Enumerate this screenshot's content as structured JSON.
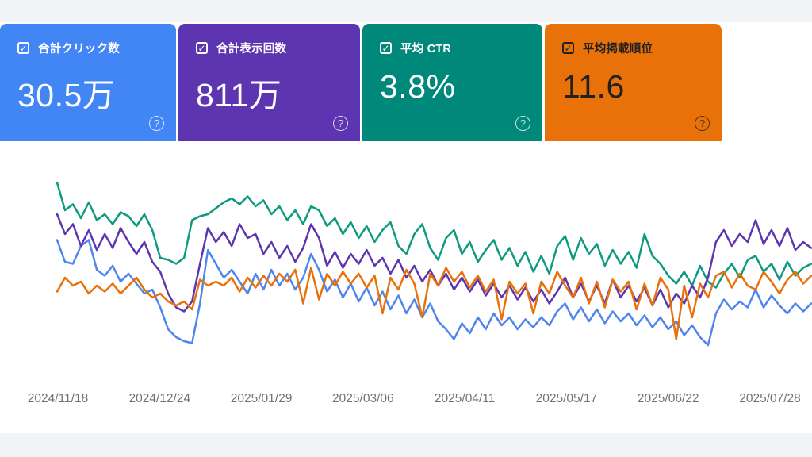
{
  "colors": {
    "page_bg": "#ffffff",
    "strip_bg": "#f3f4f8",
    "axis_label": "#6f7377"
  },
  "icons": {
    "checkbox_check": "✓",
    "help": "?"
  },
  "summary_cards": [
    {
      "id": "clicks",
      "label": "合計クリック数",
      "value": "30.5万",
      "color": "#4285f4",
      "text_color": "#ffffff",
      "checked": true
    },
    {
      "id": "impressions",
      "label": "合計表示回数",
      "value": "811万",
      "color": "#5e35b1",
      "text_color": "#ffffff",
      "checked": true
    },
    {
      "id": "ctr",
      "label": "平均 CTR",
      "value": "3.8%",
      "color": "#00897b",
      "text_color": "#ffffff",
      "checked": true
    },
    {
      "id": "position",
      "label": "平均掲載順位",
      "value": "11.6",
      "color": "#e8710a",
      "text_color": "#212121",
      "checked": true
    }
  ],
  "chart_data": {
    "type": "line",
    "title": "",
    "xlabel": "",
    "ylabel": "",
    "grid": false,
    "legend_position": "none (summary cards act as legend)",
    "x_tick_labels": [
      "2024/11/18",
      "2024/12/24",
      "2025/01/29",
      "2025/03/06",
      "2025/04/11",
      "2025/05/17",
      "2025/06/22",
      "2025/07/28"
    ],
    "x_tick_interval_days": 36,
    "value_unit": "percent of plot height (0 = bottom, 100 = top); each Search Console series has its own hidden scale",
    "series": [
      {
        "name": "合計クリック数",
        "metric": "clicks",
        "color": "#4e86ec",
        "values": [
          67,
          56,
          55,
          64,
          67,
          52,
          49,
          54,
          46,
          50,
          45,
          40,
          42,
          33,
          22,
          18,
          16,
          15,
          35,
          62,
          55,
          48,
          52,
          46,
          40,
          50,
          42,
          52,
          44,
          50,
          42,
          48,
          60,
          52,
          41,
          47,
          38,
          45,
          36,
          43,
          34,
          41,
          32,
          39,
          30,
          37,
          28,
          35,
          26,
          22,
          17,
          25,
          20,
          28,
          22,
          30,
          24,
          28,
          22,
          27,
          23,
          28,
          24,
          31,
          35,
          27,
          33,
          26,
          32,
          25,
          31,
          26,
          30,
          24,
          29,
          23,
          28,
          22,
          26,
          19,
          24,
          18,
          14,
          30,
          37,
          32,
          36,
          33,
          42,
          33,
          39,
          34,
          30,
          35,
          31,
          35
        ]
      },
      {
        "name": "合計表示回数",
        "metric": "impressions",
        "color": "#5e35b1",
        "values": [
          80,
          70,
          75,
          64,
          72,
          62,
          70,
          63,
          73,
          66,
          60,
          66,
          56,
          51,
          40,
          33,
          31,
          36,
          55,
          73,
          66,
          71,
          64,
          75,
          68,
          70,
          60,
          66,
          58,
          64,
          56,
          63,
          75,
          68,
          54,
          61,
          53,
          60,
          55,
          62,
          54,
          58,
          50,
          57,
          48,
          54,
          46,
          52,
          44,
          50,
          42,
          48,
          41,
          47,
          39,
          45,
          38,
          44,
          37,
          43,
          36,
          42,
          35,
          41,
          48,
          38,
          45,
          36,
          44,
          35,
          47,
          38,
          44,
          36,
          43,
          34,
          42,
          33,
          40,
          35,
          44,
          38,
          48,
          66,
          72,
          64,
          70,
          66,
          77,
          65,
          72,
          64,
          73,
          62,
          66,
          63
        ]
      },
      {
        "name": "平均 CTR",
        "metric": "ctr",
        "color": "#0d9a80",
        "values": [
          96,
          82,
          85,
          78,
          86,
          77,
          80,
          75,
          81,
          79,
          74,
          80,
          72,
          58,
          57,
          55,
          58,
          77,
          79,
          80,
          83,
          86,
          88,
          85,
          89,
          84,
          87,
          80,
          84,
          77,
          82,
          75,
          84,
          82,
          74,
          78,
          70,
          76,
          68,
          74,
          66,
          72,
          76,
          64,
          60,
          70,
          75,
          63,
          57,
          68,
          72,
          60,
          66,
          56,
          62,
          67,
          57,
          63,
          54,
          61,
          51,
          59,
          50,
          64,
          69,
          57,
          68,
          60,
          65,
          54,
          62,
          55,
          61,
          53,
          70,
          59,
          55,
          49,
          45,
          51,
          44,
          54,
          46,
          43,
          50,
          55,
          48,
          57,
          59,
          51,
          55,
          47,
          56,
          49,
          53,
          55
        ]
      },
      {
        "name": "平均掲載順位",
        "metric": "position",
        "color": "#e8710a",
        "values": [
          41,
          48,
          44,
          46,
          40,
          44,
          41,
          45,
          40,
          44,
          48,
          42,
          38,
          40,
          36,
          34,
          36,
          32,
          47,
          44,
          46,
          44,
          48,
          41,
          48,
          43,
          49,
          44,
          50,
          46,
          52,
          35,
          53,
          37,
          50,
          44,
          51,
          45,
          50,
          43,
          49,
          30,
          48,
          42,
          52,
          45,
          28,
          50,
          44,
          53,
          46,
          51,
          43,
          49,
          41,
          47,
          27,
          46,
          40,
          45,
          30,
          46,
          40,
          51,
          44,
          38,
          48,
          35,
          46,
          33,
          47,
          41,
          46,
          32,
          45,
          34,
          48,
          42,
          17,
          44,
          28,
          45,
          38,
          49,
          51,
          43,
          50,
          44,
          42,
          51,
          46,
          40,
          47,
          51,
          45,
          49
        ]
      }
    ]
  }
}
